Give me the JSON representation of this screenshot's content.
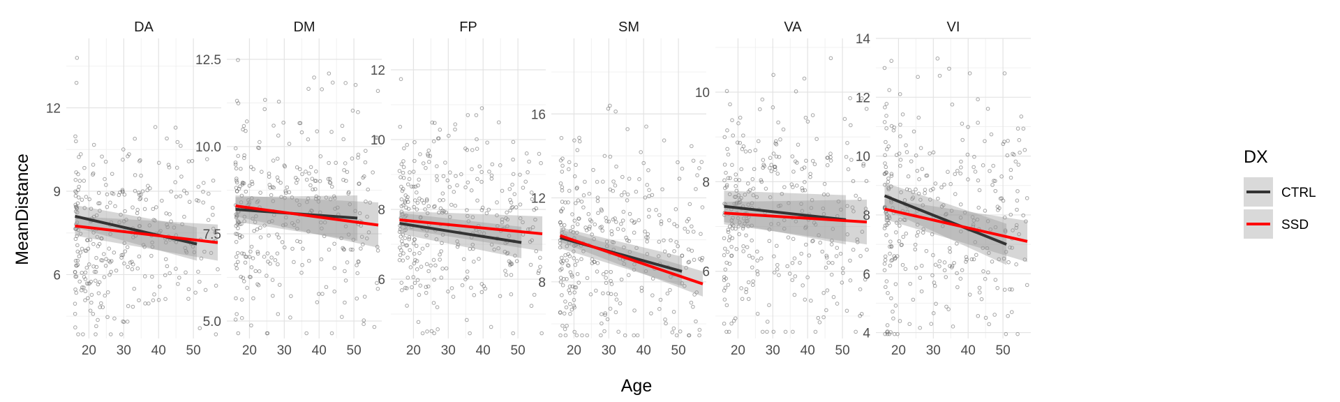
{
  "chart_data": {
    "type": "scatter",
    "xlabel": "Age",
    "ylabel": "MeanDistance",
    "legend": {
      "title": "DX",
      "placement": "right",
      "entries": [
        {
          "name": "CTRL",
          "color": "#333333"
        },
        {
          "name": "SSD",
          "color": "#ff0000"
        }
      ]
    },
    "point_color": "#595959",
    "ribbon_color": "#999999",
    "grid": true,
    "panels": [
      {
        "title": "DA",
        "xlim": [
          13.5,
          58
        ],
        "ylim": [
          3.7,
          14.5
        ],
        "xticks": [
          20,
          30,
          40,
          50
        ],
        "xtick_labels": [
          "20",
          "30",
          "40",
          "50"
        ],
        "yticks": [
          6,
          9,
          12
        ],
        "ytick_labels": [
          "6",
          "9",
          "12"
        ],
        "series": [
          {
            "name": "CTRL",
            "x": [
              16,
              51
            ],
            "y": [
              8.1,
              7.1
            ],
            "ci_low_start": 7.7,
            "ci_high_start": 8.5,
            "ci_low_end": 6.5,
            "ci_high_end": 7.7
          },
          {
            "name": "SSD",
            "x": [
              16,
              57
            ],
            "y": [
              7.75,
              7.15
            ],
            "ci_low_start": 7.4,
            "ci_high_start": 8.1,
            "ci_low_end": 6.5,
            "ci_high_end": 7.8
          }
        ],
        "points": {
          "n": 330,
          "mean": 7.4,
          "sd": 1.8,
          "seed": 11
        }
      },
      {
        "title": "DM",
        "xlim": [
          13.5,
          58
        ],
        "ylim": [
          4.5,
          13.1
        ],
        "xticks": [
          20,
          30,
          40,
          50
        ],
        "xtick_labels": [
          "20",
          "30",
          "40",
          "50"
        ],
        "yticks": [
          5.0,
          7.5,
          10.0,
          12.5
        ],
        "ytick_labels": [
          "5.0",
          "7.5",
          "10.0",
          "12.5"
        ],
        "series": [
          {
            "name": "CTRL",
            "x": [
              16,
              51
            ],
            "y": [
              8.2,
              7.95
            ],
            "ci_low_start": 7.85,
            "ci_high_start": 8.55,
            "ci_low_end": 7.3,
            "ci_high_end": 8.6
          },
          {
            "name": "SSD",
            "x": [
              16,
              57
            ],
            "y": [
              8.3,
              7.75
            ],
            "ci_low_start": 8.0,
            "ci_high_start": 8.6,
            "ci_low_end": 7.1,
            "ci_high_end": 8.4
          }
        ],
        "points": {
          "n": 330,
          "mean": 8.2,
          "sd": 1.5,
          "seed": 23
        }
      },
      {
        "title": "FP",
        "xlim": [
          13.5,
          58
        ],
        "ylim": [
          4.3,
          12.9
        ],
        "xticks": [
          20,
          30,
          40,
          50
        ],
        "xtick_labels": [
          "20",
          "30",
          "40",
          "50"
        ],
        "yticks": [
          6,
          8,
          10,
          12
        ],
        "ytick_labels": [
          "6",
          "8",
          "10",
          "12"
        ],
        "series": [
          {
            "name": "CTRL",
            "x": [
              16,
              51
            ],
            "y": [
              7.6,
              7.05
            ],
            "ci_low_start": 7.3,
            "ci_high_start": 7.9,
            "ci_low_end": 6.6,
            "ci_high_end": 7.5
          },
          {
            "name": "SSD",
            "x": [
              16,
              57
            ],
            "y": [
              7.7,
              7.3
            ],
            "ci_low_start": 7.45,
            "ci_high_start": 7.95,
            "ci_low_end": 6.8,
            "ci_high_end": 7.8
          }
        ],
        "points": {
          "n": 330,
          "mean": 7.5,
          "sd": 1.4,
          "seed": 37
        }
      },
      {
        "title": "SM",
        "xlim": [
          13.5,
          58
        ],
        "ylim": [
          5.3,
          19.6
        ],
        "xticks": [
          20,
          30,
          40,
          50
        ],
        "xtick_labels": [
          "20",
          "30",
          "40",
          "50"
        ],
        "yticks": [
          8,
          12,
          16
        ],
        "ytick_labels": [
          "8",
          "12",
          "16"
        ],
        "series": [
          {
            "name": "CTRL",
            "x": [
              16,
              51
            ],
            "y": [
              10.1,
              8.5
            ],
            "ci_low_start": 9.6,
            "ci_high_start": 10.6,
            "ci_low_end": 7.8,
            "ci_high_end": 9.2
          },
          {
            "name": "SSD",
            "x": [
              16,
              57
            ],
            "y": [
              10.2,
              7.9
            ],
            "ci_low_start": 9.9,
            "ci_high_start": 10.5,
            "ci_low_end": 7.3,
            "ci_high_end": 8.5
          }
        ],
        "points": {
          "n": 330,
          "mean": 9.6,
          "sd": 2.6,
          "seed": 41
        }
      },
      {
        "title": "VA",
        "xlim": [
          13.5,
          58
        ],
        "ylim": [
          4.5,
          11.2
        ],
        "xticks": [
          20,
          30,
          40,
          50
        ],
        "xtick_labels": [
          "20",
          "30",
          "40",
          "50"
        ],
        "yticks": [
          6,
          8,
          10
        ],
        "ytick_labels": [
          "6",
          "8",
          "10"
        ],
        "series": [
          {
            "name": "CTRL",
            "x": [
              16,
              51
            ],
            "y": [
              7.45,
              7.15
            ],
            "ci_low_start": 7.1,
            "ci_high_start": 7.8,
            "ci_low_end": 6.6,
            "ci_high_end": 7.7
          },
          {
            "name": "SSD",
            "x": [
              16,
              57
            ],
            "y": [
              7.3,
              7.1
            ],
            "ci_low_start": 7.05,
            "ci_high_start": 7.55,
            "ci_low_end": 6.6,
            "ci_high_end": 7.6
          }
        ],
        "points": {
          "n": 330,
          "mean": 7.2,
          "sd": 1.3,
          "seed": 53
        }
      },
      {
        "title": "VI",
        "xlim": [
          13.5,
          58
        ],
        "ylim": [
          3.8,
          14.0
        ],
        "xticks": [
          20,
          30,
          40,
          50
        ],
        "xtick_labels": [
          "20",
          "30",
          "40",
          "50"
        ],
        "yticks": [
          4,
          6,
          8,
          10,
          12,
          14
        ],
        "ytick_labels": [
          "4",
          "6",
          "8",
          "10",
          "12",
          "14"
        ],
        "series": [
          {
            "name": "CTRL",
            "x": [
              16,
              51
            ],
            "y": [
              8.65,
              7.0
            ],
            "ci_low_start": 8.2,
            "ci_high_start": 9.1,
            "ci_low_end": 6.3,
            "ci_high_end": 7.7
          },
          {
            "name": "SSD",
            "x": [
              16,
              57
            ],
            "y": [
              8.2,
              7.1
            ],
            "ci_low_start": 7.85,
            "ci_high_start": 8.55,
            "ci_low_end": 6.4,
            "ci_high_end": 7.8
          }
        ],
        "points": {
          "n": 330,
          "mean": 7.9,
          "sd": 1.9,
          "seed": 67
        }
      }
    ]
  }
}
